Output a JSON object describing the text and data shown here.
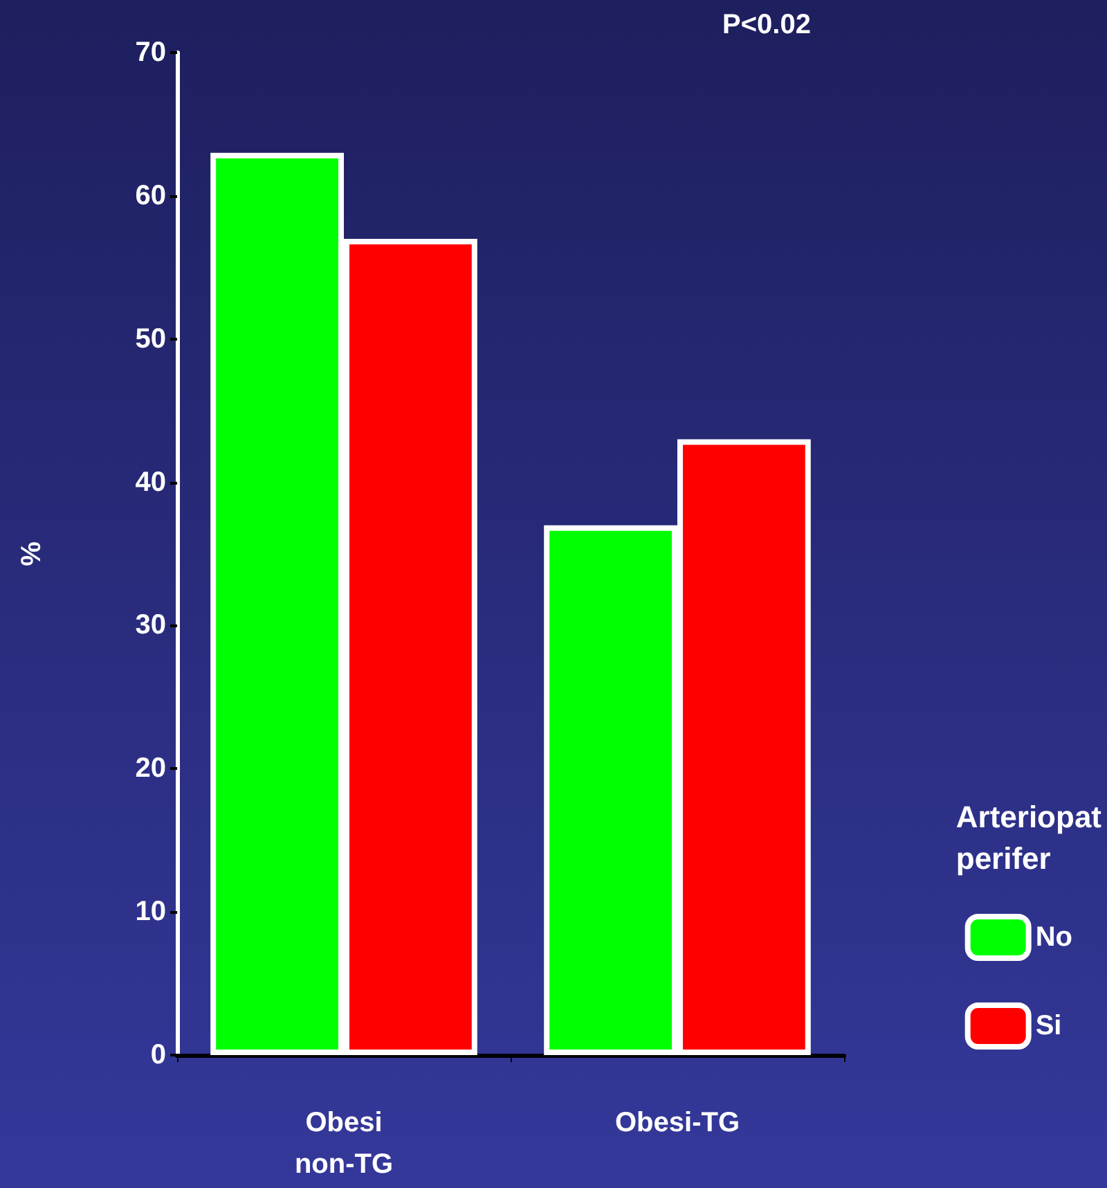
{
  "chart_data": {
    "type": "bar",
    "ylabel": "%",
    "legend_title": "Arteriopat\nperifer",
    "categories": [
      "Obesi\nnon-TG",
      "Obesi-TG"
    ],
    "series": [
      {
        "name": "No",
        "color": "#00ff00",
        "values": [
          63,
          37
        ]
      },
      {
        "name": "Si",
        "color": "#ff0000",
        "values": [
          57,
          43
        ]
      }
    ],
    "ylim": [
      0,
      70
    ],
    "yticks": [
      0,
      10,
      20,
      30,
      40,
      50,
      60,
      70
    ],
    "grid": false,
    "legend": "right",
    "annotations": [
      "P<0.02"
    ]
  }
}
